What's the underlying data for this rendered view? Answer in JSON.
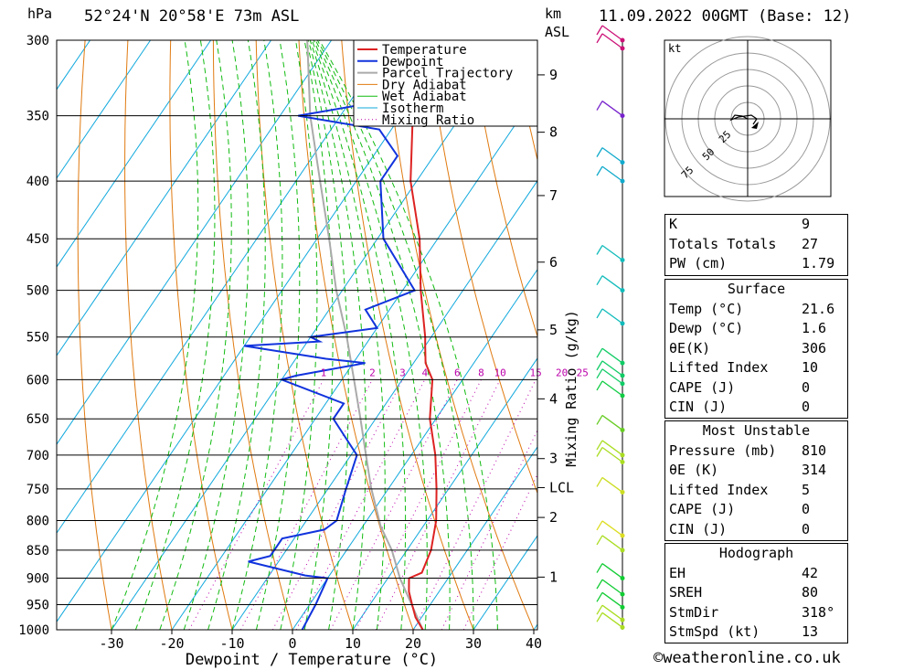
{
  "header": {
    "location": "52°24'N 20°58'E 73m ASL",
    "datetime": "11.09.2022 00GMT (Base: 12)",
    "hpa_label": "hPa",
    "km_label": "km",
    "asl_label": "ASL"
  },
  "footer": {
    "credit": "©weatheronline.co.uk"
  },
  "chart_data": {
    "type": "line",
    "subtype": "skew-T log-P",
    "title": "",
    "xlabel": "Dewpoint / Temperature (°C)",
    "ylabel": "hPa",
    "secondary_ylabel": "Mixing Ratio (g/kg)",
    "xlim": [
      -40,
      40
    ],
    "ylim": [
      1000,
      300
    ],
    "x_ticks": [
      -30,
      -20,
      -10,
      0,
      10,
      20,
      30,
      40
    ],
    "pressure_levels": [
      300,
      350,
      400,
      450,
      500,
      550,
      600,
      650,
      700,
      750,
      800,
      850,
      900,
      950,
      1000
    ],
    "height_km_ticks": [
      {
        "label": "9",
        "p": 322
      },
      {
        "label": "8",
        "p": 362
      },
      {
        "label": "7",
        "p": 412
      },
      {
        "label": "6",
        "p": 472
      },
      {
        "label": "5",
        "p": 542
      },
      {
        "label": "4",
        "p": 624
      },
      {
        "label": "3",
        "p": 705
      },
      {
        "label": "LCL",
        "p": 748
      },
      {
        "label": "2",
        "p": 795
      },
      {
        "label": "1",
        "p": 898
      }
    ],
    "mixing_ratio_labels": [
      "1",
      "2",
      "3",
      "4",
      "6",
      "8",
      "10",
      "15",
      "20",
      "25"
    ],
    "legend": [
      "Temperature",
      "Dewpoint",
      "Parcel Trajectory",
      "Dry Adiabat",
      "Wet Adiabat",
      "Isotherm",
      "Mixing Ratio"
    ],
    "legend_position": "top-right",
    "colors": {
      "temperature": "#dd2222",
      "dewpoint": "#1133dd",
      "parcel": "#aaaaaa",
      "dry_adiabat": "#e07a10",
      "wet_adiabat": "#11bb11",
      "isotherm": "#11a9dd",
      "mixing_ratio": "#bb00aa"
    },
    "series": [
      {
        "name": "Temperature",
        "points": [
          [
            1000,
            21.6
          ],
          [
            975,
            19
          ],
          [
            950,
            17
          ],
          [
            925,
            15
          ],
          [
            900,
            13.5
          ],
          [
            890,
            15
          ],
          [
            850,
            14
          ],
          [
            800,
            11.5
          ],
          [
            750,
            8
          ],
          [
            700,
            4
          ],
          [
            650,
            -1
          ],
          [
            600,
            -5
          ],
          [
            580,
            -8
          ],
          [
            560,
            -10
          ],
          [
            550,
            -11
          ],
          [
            500,
            -17
          ],
          [
            450,
            -23
          ],
          [
            400,
            -31
          ],
          [
            350,
            -38
          ],
          [
            300,
            -43
          ]
        ]
      },
      {
        "name": "Dewpoint",
        "points": [
          [
            1000,
            1.6
          ],
          [
            950,
            1
          ],
          [
            900,
            0
          ],
          [
            895,
            -4
          ],
          [
            870,
            -15
          ],
          [
            860,
            -12
          ],
          [
            845,
            -12
          ],
          [
            830,
            -12
          ],
          [
            815,
            -6
          ],
          [
            800,
            -5
          ],
          [
            750,
            -7
          ],
          [
            700,
            -9
          ],
          [
            650,
            -17
          ],
          [
            630,
            -17
          ],
          [
            600,
            -30
          ],
          [
            595,
            -28
          ],
          [
            580,
            -18
          ],
          [
            575,
            -25
          ],
          [
            560,
            -40
          ],
          [
            555,
            -28
          ],
          [
            550,
            -30
          ],
          [
            540,
            -20
          ],
          [
            520,
            -24
          ],
          [
            500,
            -18
          ],
          [
            450,
            -29
          ],
          [
            400,
            -36
          ],
          [
            380,
            -36
          ],
          [
            360,
            -42
          ],
          [
            350,
            -57
          ],
          [
            340,
            -45
          ],
          [
            320,
            -50
          ],
          [
            310,
            -45
          ],
          [
            300,
            -53
          ]
        ]
      },
      {
        "name": "Parcel Trajectory",
        "points": [
          [
            1000,
            21.6
          ],
          [
            900,
            12
          ],
          [
            850,
            7.5
          ],
          [
            810,
            3
          ],
          [
            748,
            -3
          ],
          [
            700,
            -7.5
          ],
          [
            650,
            -12.5
          ],
          [
            600,
            -18
          ],
          [
            550,
            -24
          ],
          [
            500,
            -31
          ],
          [
            450,
            -38
          ],
          [
            400,
            -46
          ],
          [
            350,
            -55
          ],
          [
            300,
            -64
          ]
        ]
      }
    ],
    "hodograph": {
      "unit_label": "kt",
      "ring_labels": [
        "25",
        "50",
        "75"
      ]
    },
    "indices": [
      {
        "key": "K",
        "value": "9"
      },
      {
        "key": "Totals Totals",
        "value": "27"
      },
      {
        "key": "PW (cm)",
        "value": "1.79"
      }
    ],
    "surface": {
      "title": "Surface",
      "rows": [
        {
          "key": "Temp (°C)",
          "value": "21.6"
        },
        {
          "key": "Dewp (°C)",
          "value": "1.6"
        },
        {
          "key": "θE(K)",
          "value": "306"
        },
        {
          "key": "Lifted Index",
          "value": "10"
        },
        {
          "key": "CAPE (J)",
          "value": "0"
        },
        {
          "key": "CIN (J)",
          "value": "0"
        }
      ]
    },
    "most_unstable": {
      "title": "Most Unstable",
      "rows": [
        {
          "key": "Pressure (mb)",
          "value": "810"
        },
        {
          "key": "θE (K)",
          "value": "314"
        },
        {
          "key": "Lifted Index",
          "value": "5"
        },
        {
          "key": "CAPE (J)",
          "value": "0"
        },
        {
          "key": "CIN (J)",
          "value": "0"
        }
      ]
    },
    "hodograph_table": {
      "title": "Hodograph",
      "rows": [
        {
          "key": "EH",
          "value": "42"
        },
        {
          "key": "SREH",
          "value": "80"
        },
        {
          "key": "StmDir",
          "value": "318°"
        },
        {
          "key": "StmSpd (kt)",
          "value": "13"
        }
      ]
    }
  }
}
